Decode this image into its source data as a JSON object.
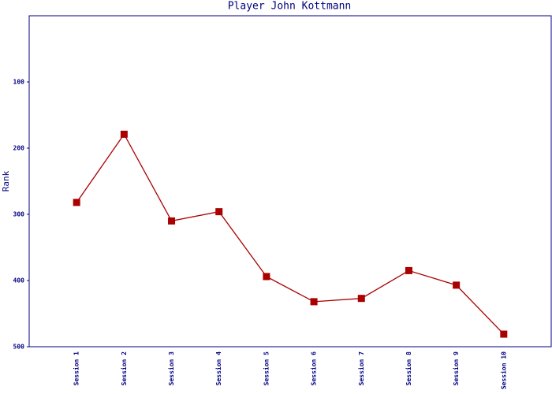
{
  "chart_data": {
    "type": "line",
    "title": "Player John Kottmann",
    "y_label": "Rank",
    "categories": [
      "Session 1",
      "Session 2",
      "Session 3",
      "Session 4",
      "Session 5",
      "Session 6",
      "Session 7",
      "Session 8",
      "Session 9",
      "Session 10"
    ],
    "values": [
      282,
      179,
      310,
      296,
      394,
      432,
      427,
      385,
      407,
      481
    ],
    "color": "#aa0000",
    "axis_color": "#000080",
    "ylim": [
      0,
      500
    ],
    "yticks": [
      100,
      200,
      300,
      400,
      500
    ],
    "y_inverted": true,
    "grid": false
  }
}
